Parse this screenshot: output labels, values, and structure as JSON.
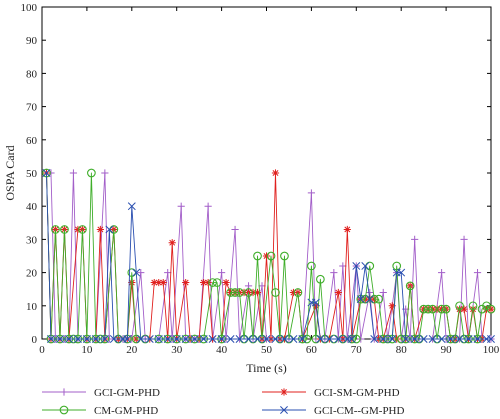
{
  "chart_data": {
    "type": "line",
    "title": "",
    "xlabel": "Time (s)",
    "ylabel": "OSPA Card",
    "xlim": [
      0,
      100
    ],
    "ylim": [
      0,
      100
    ],
    "xticks": [
      0,
      10,
      20,
      30,
      40,
      50,
      60,
      70,
      80,
      90,
      100
    ],
    "yticks": [
      0,
      10,
      20,
      30,
      40,
      50,
      60,
      70,
      80,
      90,
      100
    ],
    "grid": false,
    "legend_position": "bottom",
    "series": [
      {
        "name": "GCI-GM-PHD",
        "color": "#a35fc9",
        "marker": "plus",
        "points": [
          [
            1,
            50
          ],
          [
            2,
            50
          ],
          [
            3,
            0
          ],
          [
            5,
            0
          ],
          [
            6,
            0
          ],
          [
            7,
            50
          ],
          [
            8,
            0
          ],
          [
            10,
            0
          ],
          [
            12,
            0
          ],
          [
            14,
            50
          ],
          [
            15,
            0
          ],
          [
            17,
            0
          ],
          [
            18,
            0
          ],
          [
            20,
            0
          ],
          [
            22,
            20
          ],
          [
            23,
            0
          ],
          [
            26,
            0
          ],
          [
            28,
            20
          ],
          [
            29,
            0
          ],
          [
            31,
            40
          ],
          [
            32,
            0
          ],
          [
            34,
            0
          ],
          [
            35,
            0
          ],
          [
            37,
            40
          ],
          [
            38,
            0
          ],
          [
            40,
            20
          ],
          [
            41,
            0
          ],
          [
            43,
            33
          ],
          [
            44,
            0
          ],
          [
            46,
            16
          ],
          [
            47,
            0
          ],
          [
            49,
            16
          ],
          [
            50,
            0
          ],
          [
            53,
            0
          ],
          [
            55,
            0
          ],
          [
            58,
            0
          ],
          [
            60,
            44
          ],
          [
            61,
            0
          ],
          [
            63,
            0
          ],
          [
            65,
            20
          ],
          [
            66,
            0
          ],
          [
            67,
            22
          ],
          [
            68,
            0
          ],
          [
            70,
            22
          ],
          [
            71,
            0
          ],
          [
            73,
            14
          ],
          [
            74,
            0
          ],
          [
            76,
            14
          ],
          [
            77,
            0
          ],
          [
            79,
            20
          ],
          [
            80,
            0
          ],
          [
            81,
            9
          ],
          [
            82,
            0
          ],
          [
            83,
            30
          ],
          [
            84,
            0
          ],
          [
            87,
            0
          ],
          [
            89,
            20
          ],
          [
            90,
            0
          ],
          [
            93,
            0
          ],
          [
            94,
            30
          ],
          [
            95,
            0
          ],
          [
            97,
            20
          ],
          [
            98,
            0
          ],
          [
            100,
            0
          ]
        ]
      },
      {
        "name": "GCI-SM-GM-PHD",
        "color": "#e0201e",
        "marker": "asterisk",
        "points": [
          [
            1,
            50
          ],
          [
            2,
            0
          ],
          [
            3,
            33
          ],
          [
            4,
            0
          ],
          [
            5,
            33
          ],
          [
            6,
            0
          ],
          [
            8,
            33
          ],
          [
            9,
            33
          ],
          [
            10,
            0
          ],
          [
            12,
            0
          ],
          [
            13,
            33
          ],
          [
            14,
            0
          ],
          [
            16,
            33
          ],
          [
            17,
            0
          ],
          [
            19,
            0
          ],
          [
            20,
            17
          ],
          [
            21,
            0
          ],
          [
            24,
            0
          ],
          [
            25,
            17
          ],
          [
            26,
            17
          ],
          [
            27,
            17
          ],
          [
            28,
            0
          ],
          [
            29,
            29
          ],
          [
            30,
            0
          ],
          [
            32,
            17
          ],
          [
            33,
            0
          ],
          [
            35,
            0
          ],
          [
            36,
            17
          ],
          [
            37,
            17
          ],
          [
            38,
            0
          ],
          [
            40,
            0
          ],
          [
            41,
            17
          ],
          [
            42,
            14
          ],
          [
            43,
            14
          ],
          [
            44,
            14
          ],
          [
            45,
            14
          ],
          [
            46,
            14
          ],
          [
            47,
            14
          ],
          [
            48,
            14
          ],
          [
            49,
            0
          ],
          [
            50,
            25
          ],
          [
            51,
            0
          ],
          [
            52,
            50
          ],
          [
            53,
            0
          ],
          [
            54,
            0
          ],
          [
            56,
            14
          ],
          [
            57,
            14
          ],
          [
            58,
            0
          ],
          [
            61,
            10
          ],
          [
            62,
            0
          ],
          [
            64,
            0
          ],
          [
            66,
            14
          ],
          [
            67,
            0
          ],
          [
            68,
            33
          ],
          [
            69,
            0
          ],
          [
            71,
            12
          ],
          [
            72,
            12
          ],
          [
            73,
            12
          ],
          [
            74,
            12
          ],
          [
            75,
            0
          ],
          [
            76,
            0
          ],
          [
            78,
            10
          ],
          [
            79,
            0
          ],
          [
            81,
            0
          ],
          [
            82,
            16
          ],
          [
            83,
            0
          ],
          [
            85,
            9
          ],
          [
            86,
            9
          ],
          [
            87,
            9
          ],
          [
            88,
            9
          ],
          [
            89,
            9
          ],
          [
            90,
            9
          ],
          [
            91,
            0
          ],
          [
            92,
            0
          ],
          [
            93,
            9
          ],
          [
            94,
            9
          ],
          [
            95,
            0
          ],
          [
            96,
            9
          ],
          [
            97,
            0
          ],
          [
            98,
            0
          ],
          [
            99,
            9
          ],
          [
            100,
            9
          ]
        ]
      },
      {
        "name": "CM-GM-PHD",
        "color": "#3fae2a",
        "marker": "circle",
        "points": [
          [
            1,
            50
          ],
          [
            2,
            0
          ],
          [
            3,
            33
          ],
          [
            4,
            0
          ],
          [
            5,
            33
          ],
          [
            6,
            0
          ],
          [
            7,
            0
          ],
          [
            8,
            0
          ],
          [
            9,
            33
          ],
          [
            10,
            0
          ],
          [
            11,
            50
          ],
          [
            12,
            0
          ],
          [
            13,
            0
          ],
          [
            14,
            0
          ],
          [
            16,
            33
          ],
          [
            17,
            0
          ],
          [
            19,
            0
          ],
          [
            20,
            20
          ],
          [
            21,
            0
          ],
          [
            23,
            0
          ],
          [
            26,
            0
          ],
          [
            28,
            0
          ],
          [
            30,
            0
          ],
          [
            32,
            0
          ],
          [
            34,
            0
          ],
          [
            36,
            0
          ],
          [
            38,
            17
          ],
          [
            39,
            17
          ],
          [
            40,
            0
          ],
          [
            42,
            14
          ],
          [
            43,
            14
          ],
          [
            44,
            14
          ],
          [
            45,
            0
          ],
          [
            46,
            14
          ],
          [
            47,
            0
          ],
          [
            48,
            25
          ],
          [
            49,
            0
          ],
          [
            51,
            25
          ],
          [
            52,
            14
          ],
          [
            53,
            0
          ],
          [
            54,
            25
          ],
          [
            55,
            0
          ],
          [
            57,
            14
          ],
          [
            58,
            0
          ],
          [
            59,
            0
          ],
          [
            60,
            22
          ],
          [
            61,
            0
          ],
          [
            62,
            18
          ],
          [
            63,
            0
          ],
          [
            65,
            0
          ],
          [
            67,
            0
          ],
          [
            69,
            0
          ],
          [
            70,
            0
          ],
          [
            71,
            12
          ],
          [
            72,
            12
          ],
          [
            73,
            22
          ],
          [
            74,
            12
          ],
          [
            75,
            12
          ],
          [
            76,
            0
          ],
          [
            77,
            0
          ],
          [
            78,
            0
          ],
          [
            79,
            22
          ],
          [
            80,
            0
          ],
          [
            81,
            0
          ],
          [
            82,
            16
          ],
          [
            83,
            0
          ],
          [
            84,
            0
          ],
          [
            85,
            9
          ],
          [
            86,
            9
          ],
          [
            87,
            9
          ],
          [
            88,
            0
          ],
          [
            89,
            9
          ],
          [
            90,
            9
          ],
          [
            91,
            0
          ],
          [
            92,
            0
          ],
          [
            93,
            10
          ],
          [
            94,
            0
          ],
          [
            95,
            0
          ],
          [
            96,
            10
          ],
          [
            97,
            0
          ],
          [
            98,
            9
          ],
          [
            99,
            10
          ],
          [
            100,
            9
          ]
        ]
      },
      {
        "name": "GCI-CM--GM-PHD",
        "color": "#2a4fb0",
        "marker": "cross",
        "points": [
          [
            1,
            50
          ],
          [
            2,
            0
          ],
          [
            4,
            0
          ],
          [
            6,
            0
          ],
          [
            8,
            0
          ],
          [
            10,
            0
          ],
          [
            12,
            0
          ],
          [
            14,
            0
          ],
          [
            15,
            33
          ],
          [
            16,
            0
          ],
          [
            18,
            0
          ],
          [
            19,
            0
          ],
          [
            20,
            40
          ],
          [
            21,
            20
          ],
          [
            22,
            0
          ],
          [
            24,
            0
          ],
          [
            26,
            0
          ],
          [
            28,
            0
          ],
          [
            30,
            0
          ],
          [
            32,
            0
          ],
          [
            34,
            0
          ],
          [
            36,
            0
          ],
          [
            38,
            0
          ],
          [
            40,
            0
          ],
          [
            42,
            0
          ],
          [
            44,
            0
          ],
          [
            46,
            0
          ],
          [
            48,
            0
          ],
          [
            50,
            0
          ],
          [
            52,
            0
          ],
          [
            54,
            0
          ],
          [
            56,
            0
          ],
          [
            58,
            0
          ],
          [
            60,
            11
          ],
          [
            61,
            11
          ],
          [
            62,
            0
          ],
          [
            64,
            0
          ],
          [
            66,
            0
          ],
          [
            68,
            0
          ],
          [
            69,
            0
          ],
          [
            70,
            22
          ],
          [
            71,
            12
          ],
          [
            72,
            22
          ],
          [
            73,
            12
          ],
          [
            74,
            0
          ],
          [
            76,
            0
          ],
          [
            78,
            0
          ],
          [
            79,
            20
          ],
          [
            80,
            20
          ],
          [
            81,
            0
          ],
          [
            83,
            0
          ],
          [
            85,
            0
          ],
          [
            87,
            0
          ],
          [
            89,
            0
          ],
          [
            91,
            0
          ],
          [
            93,
            0
          ],
          [
            95,
            0
          ],
          [
            97,
            0
          ],
          [
            99,
            0
          ],
          [
            100,
            0
          ]
        ]
      }
    ]
  }
}
